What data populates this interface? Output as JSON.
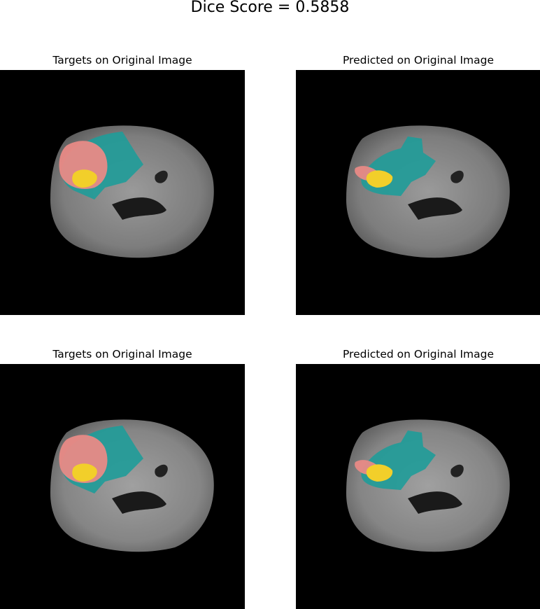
{
  "figure": {
    "suptitle": "Dice Score = 0.5858"
  },
  "panels": [
    {
      "title": "Targets on Original Image",
      "overlay": "target"
    },
    {
      "title": "Predicted on Original Image",
      "overlay": "predicted"
    },
    {
      "title": "Targets on Original Image",
      "overlay": "target"
    },
    {
      "title": "Predicted on Original Image",
      "overlay": "predicted"
    }
  ],
  "colors": {
    "background": "#000000",
    "brain_tissue": "#8c8c8c",
    "edema": "#1f9c99",
    "tumor_core": "#e88a86",
    "enhancing_tumor": "#f2cf2a"
  }
}
